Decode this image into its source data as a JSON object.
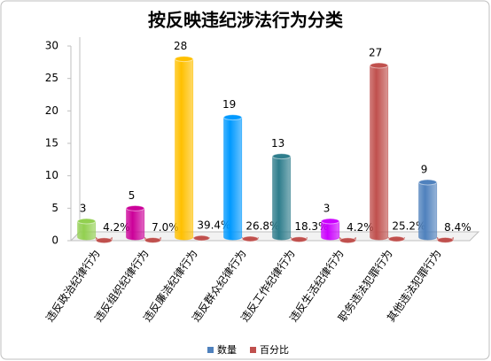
{
  "chart_data": {
    "type": "bar",
    "title": "按反映违纪涉法行为分类",
    "categories": [
      "违反政治纪律行为",
      "违反组织纪律行为",
      "违反廉洁纪律行为",
      "违反群众纪律行为",
      "违反工作纪律行为",
      "违反生活纪律行为",
      "职务违法犯罪行为",
      "其他违法犯罪行为"
    ],
    "series": [
      {
        "name": "数量",
        "color": "#4f81bd",
        "colors": [
          "#92d050",
          "#cc0099",
          "#ffc000",
          "#0099ff",
          "#2e7d8c",
          "#cc00ff",
          "#c0504d",
          "#4f81bd"
        ],
        "values": [
          3,
          5,
          28,
          19,
          13,
          3,
          27,
          9
        ]
      },
      {
        "name": "百分比",
        "color": "#c0504d",
        "values": [
          0.042,
          0.07,
          0.394,
          0.268,
          0.183,
          0.042,
          0.252,
          0.084
        ],
        "value_labels": [
          "4.2%",
          "7.0%",
          "39.4%",
          "26.8%",
          "18.3%",
          "4.2%",
          "25.2%",
          "8.4%"
        ]
      }
    ],
    "ylim": [
      0,
      30
    ],
    "yticks": [
      0,
      5,
      10,
      15,
      20,
      25,
      30
    ],
    "legend": "bottom"
  }
}
